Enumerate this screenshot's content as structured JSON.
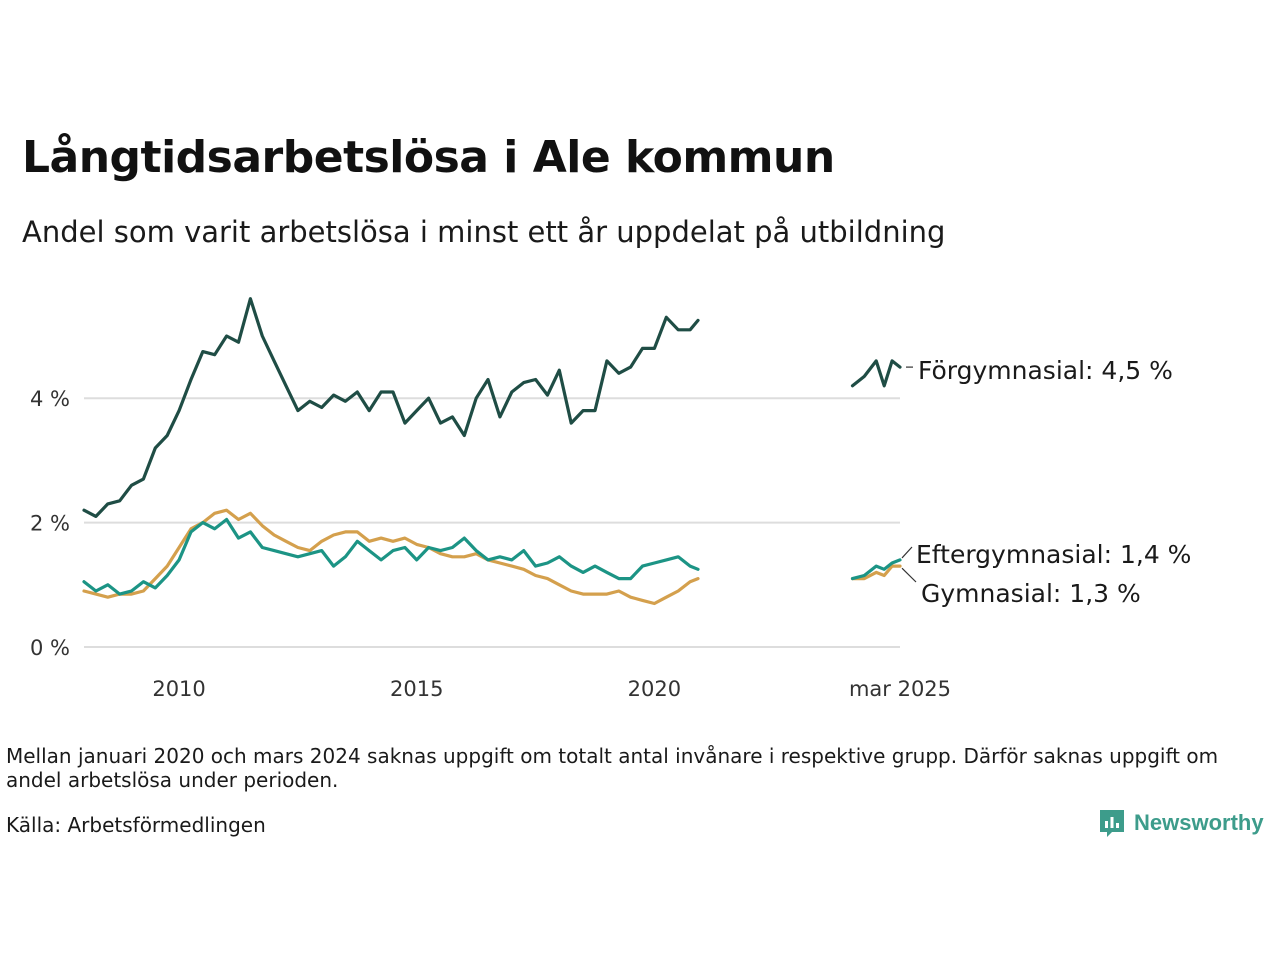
{
  "header": {
    "title": "Långtidsarbetslösa i Ale kommun",
    "subtitle": "Andel som varit arbetslösa i minst ett år uppdelat på utbildning"
  },
  "footer": {
    "note": "Mellan januari 2020 och mars 2024 saknas uppgift om totalt antal invånare i respektive grupp. Därför saknas uppgift om andel arbetslösa under perioden.",
    "source": "Källa: Arbetsförmedlingen",
    "brand": "Newsworthy"
  },
  "chart_data": {
    "type": "line",
    "y_unit": "%",
    "ylim": [
      0,
      5.8
    ],
    "yticks": [
      0,
      2,
      4
    ],
    "ytick_labels": [
      "0 %",
      "2 %",
      "4 %"
    ],
    "xticks": [
      "2010",
      "2015",
      "2020",
      "mar 2025"
    ],
    "grid": true,
    "legend": "end-labels",
    "colors": {
      "forgymnasial": "#1f4d45",
      "eftergymnasial": "#1c9485",
      "gymnasial": "#d4a04d",
      "grid": "#dddddd",
      "axis_text": "#333333"
    },
    "series": [
      {
        "key": "forgymnasial",
        "name": "Förgymnasial",
        "end_label": "Förgymnasial: 4,5 %",
        "segments": [
          [
            [
              "2008-01",
              2.2
            ],
            [
              "2008-04",
              2.1
            ],
            [
              "2008-07",
              2.3
            ],
            [
              "2008-10",
              2.35
            ],
            [
              "2009-01",
              2.6
            ],
            [
              "2009-04",
              2.7
            ],
            [
              "2009-07",
              3.2
            ],
            [
              "2009-10",
              3.4
            ],
            [
              "2010-01",
              3.8
            ],
            [
              "2010-04",
              4.3
            ],
            [
              "2010-07",
              4.75
            ],
            [
              "2010-10",
              4.7
            ],
            [
              "2011-01",
              5.0
            ],
            [
              "2011-04",
              4.9
            ],
            [
              "2011-07",
              5.6
            ],
            [
              "2011-10",
              5.0
            ],
            [
              "2012-01",
              4.6
            ],
            [
              "2012-04",
              4.2
            ],
            [
              "2012-07",
              3.8
            ],
            [
              "2012-10",
              3.95
            ],
            [
              "2013-01",
              3.85
            ],
            [
              "2013-04",
              4.05
            ],
            [
              "2013-07",
              3.95
            ],
            [
              "2013-10",
              4.1
            ],
            [
              "2014-01",
              3.8
            ],
            [
              "2014-04",
              4.1
            ],
            [
              "2014-07",
              4.1
            ],
            [
              "2014-10",
              3.6
            ],
            [
              "2015-01",
              3.8
            ],
            [
              "2015-04",
              4.0
            ],
            [
              "2015-07",
              3.6
            ],
            [
              "2015-10",
              3.7
            ],
            [
              "2016-01",
              3.4
            ],
            [
              "2016-04",
              4.0
            ],
            [
              "2016-07",
              4.3
            ],
            [
              "2016-10",
              3.7
            ],
            [
              "2017-01",
              4.1
            ],
            [
              "2017-04",
              4.25
            ],
            [
              "2017-07",
              4.3
            ],
            [
              "2017-10",
              4.05
            ],
            [
              "2018-01",
              4.45
            ],
            [
              "2018-04",
              3.6
            ],
            [
              "2018-07",
              3.8
            ],
            [
              "2018-10",
              3.8
            ],
            [
              "2019-01",
              4.6
            ],
            [
              "2019-04",
              4.4
            ],
            [
              "2019-07",
              4.5
            ],
            [
              "2019-10",
              4.8
            ],
            [
              "2020-01",
              4.8
            ],
            [
              "2020-04",
              5.3
            ],
            [
              "2020-07",
              5.1
            ],
            [
              "2020-10",
              5.1
            ],
            [
              "2020-12",
              5.25
            ]
          ],
          [
            [
              "2024-03",
              4.2
            ],
            [
              "2024-06",
              4.35
            ],
            [
              "2024-09",
              4.6
            ],
            [
              "2024-11",
              4.2
            ],
            [
              "2025-01",
              4.6
            ],
            [
              "2025-03",
              4.5
            ]
          ]
        ]
      },
      {
        "key": "eftergymnasial",
        "name": "Eftergymnasial",
        "end_label": "Eftergymnasial: 1,4 %",
        "segments": [
          [
            [
              "2008-01",
              1.05
            ],
            [
              "2008-04",
              0.9
            ],
            [
              "2008-07",
              1.0
            ],
            [
              "2008-10",
              0.85
            ],
            [
              "2009-01",
              0.9
            ],
            [
              "2009-04",
              1.05
            ],
            [
              "2009-07",
              0.95
            ],
            [
              "2009-10",
              1.15
            ],
            [
              "2010-01",
              1.4
            ],
            [
              "2010-04",
              1.85
            ],
            [
              "2010-07",
              2.0
            ],
            [
              "2010-10",
              1.9
            ],
            [
              "2011-01",
              2.05
            ],
            [
              "2011-04",
              1.75
            ],
            [
              "2011-07",
              1.85
            ],
            [
              "2011-10",
              1.6
            ],
            [
              "2012-01",
              1.55
            ],
            [
              "2012-04",
              1.5
            ],
            [
              "2012-07",
              1.45
            ],
            [
              "2012-10",
              1.5
            ],
            [
              "2013-01",
              1.55
            ],
            [
              "2013-04",
              1.3
            ],
            [
              "2013-07",
              1.45
            ],
            [
              "2013-10",
              1.7
            ],
            [
              "2014-01",
              1.55
            ],
            [
              "2014-04",
              1.4
            ],
            [
              "2014-07",
              1.55
            ],
            [
              "2014-10",
              1.6
            ],
            [
              "2015-01",
              1.4
            ],
            [
              "2015-04",
              1.6
            ],
            [
              "2015-07",
              1.55
            ],
            [
              "2015-10",
              1.6
            ],
            [
              "2016-01",
              1.75
            ],
            [
              "2016-04",
              1.55
            ],
            [
              "2016-07",
              1.4
            ],
            [
              "2016-10",
              1.45
            ],
            [
              "2017-01",
              1.4
            ],
            [
              "2017-04",
              1.55
            ],
            [
              "2017-07",
              1.3
            ],
            [
              "2017-10",
              1.35
            ],
            [
              "2018-01",
              1.45
            ],
            [
              "2018-04",
              1.3
            ],
            [
              "2018-07",
              1.2
            ],
            [
              "2018-10",
              1.3
            ],
            [
              "2019-01",
              1.2
            ],
            [
              "2019-04",
              1.1
            ],
            [
              "2019-07",
              1.1
            ],
            [
              "2019-10",
              1.3
            ],
            [
              "2020-01",
              1.35
            ],
            [
              "2020-04",
              1.4
            ],
            [
              "2020-07",
              1.45
            ],
            [
              "2020-10",
              1.3
            ],
            [
              "2020-12",
              1.25
            ]
          ],
          [
            [
              "2024-03",
              1.1
            ],
            [
              "2024-06",
              1.15
            ],
            [
              "2024-09",
              1.3
            ],
            [
              "2024-11",
              1.25
            ],
            [
              "2025-01",
              1.35
            ],
            [
              "2025-03",
              1.4
            ]
          ]
        ]
      },
      {
        "key": "gymnasial",
        "name": "Gymnasial",
        "end_label": "Gymnasial: 1,3 %",
        "segments": [
          [
            [
              "2008-01",
              0.9
            ],
            [
              "2008-04",
              0.85
            ],
            [
              "2008-07",
              0.8
            ],
            [
              "2008-10",
              0.85
            ],
            [
              "2009-01",
              0.85
            ],
            [
              "2009-04",
              0.9
            ],
            [
              "2009-07",
              1.1
            ],
            [
              "2009-10",
              1.3
            ],
            [
              "2010-01",
              1.6
            ],
            [
              "2010-04",
              1.9
            ],
            [
              "2010-07",
              2.0
            ],
            [
              "2010-10",
              2.15
            ],
            [
              "2011-01",
              2.2
            ],
            [
              "2011-04",
              2.05
            ],
            [
              "2011-07",
              2.15
            ],
            [
              "2011-10",
              1.95
            ],
            [
              "2012-01",
              1.8
            ],
            [
              "2012-04",
              1.7
            ],
            [
              "2012-07",
              1.6
            ],
            [
              "2012-10",
              1.55
            ],
            [
              "2013-01",
              1.7
            ],
            [
              "2013-04",
              1.8
            ],
            [
              "2013-07",
              1.85
            ],
            [
              "2013-10",
              1.85
            ],
            [
              "2014-01",
              1.7
            ],
            [
              "2014-04",
              1.75
            ],
            [
              "2014-07",
              1.7
            ],
            [
              "2014-10",
              1.75
            ],
            [
              "2015-01",
              1.65
            ],
            [
              "2015-04",
              1.6
            ],
            [
              "2015-07",
              1.5
            ],
            [
              "2015-10",
              1.45
            ],
            [
              "2016-01",
              1.45
            ],
            [
              "2016-04",
              1.5
            ],
            [
              "2016-07",
              1.4
            ],
            [
              "2016-10",
              1.35
            ],
            [
              "2017-01",
              1.3
            ],
            [
              "2017-04",
              1.25
            ],
            [
              "2017-07",
              1.15
            ],
            [
              "2017-10",
              1.1
            ],
            [
              "2018-01",
              1.0
            ],
            [
              "2018-04",
              0.9
            ],
            [
              "2018-07",
              0.85
            ],
            [
              "2018-10",
              0.85
            ],
            [
              "2019-01",
              0.85
            ],
            [
              "2019-04",
              0.9
            ],
            [
              "2019-07",
              0.8
            ],
            [
              "2019-10",
              0.75
            ],
            [
              "2020-01",
              0.7
            ],
            [
              "2020-04",
              0.8
            ],
            [
              "2020-07",
              0.9
            ],
            [
              "2020-10",
              1.05
            ],
            [
              "2020-12",
              1.1
            ]
          ],
          [
            [
              "2024-03",
              1.1
            ],
            [
              "2024-06",
              1.1
            ],
            [
              "2024-09",
              1.2
            ],
            [
              "2024-11",
              1.15
            ],
            [
              "2025-01",
              1.3
            ],
            [
              "2025-03",
              1.3
            ]
          ]
        ]
      }
    ]
  }
}
